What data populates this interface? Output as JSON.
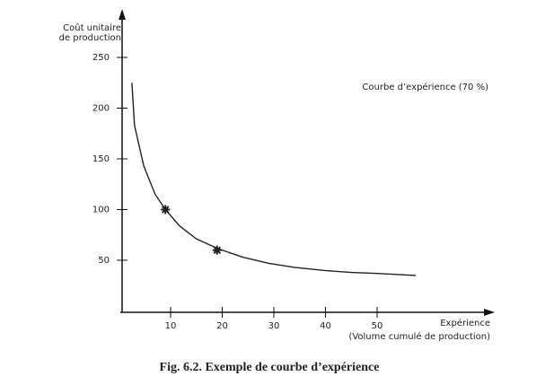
{
  "chart_data": {
    "type": "line",
    "title": "Fig. 6.2. Exemple de courbe d’expérience",
    "y_label": [
      "Coût unitaire",
      "de production"
    ],
    "x_label": [
      "Expérience",
      "(Volume cumulé de production)"
    ],
    "xlim": [
      0,
      72
    ],
    "ylim": [
      0,
      290
    ],
    "xticks": [
      10,
      20,
      30,
      40,
      50
    ],
    "yticks": [
      50,
      100,
      150,
      200,
      250
    ],
    "grid": false,
    "series": [
      {
        "name": "Courbe d’expérience (70 %)",
        "color": "#222222",
        "x": [
          2.5,
          3,
          4.8,
          7,
          9,
          11.7,
          15,
          19.4,
          24,
          29,
          34,
          39.6,
          45,
          50,
          57.5
        ],
        "values": [
          225,
          183,
          143,
          115,
          100,
          84,
          71,
          61,
          53,
          47,
          43,
          40,
          38,
          37,
          35
        ]
      },
      {
        "color": "#222222",
        "x": [
          9,
          19
        ],
        "values": [
          100,
          60
        ]
      }
    ]
  }
}
